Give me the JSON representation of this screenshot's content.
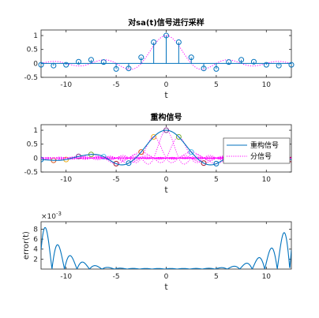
{
  "chart_data": [
    {
      "type": "stem",
      "title": "对sa(t)信号进行采样",
      "xlabel": "t",
      "ylabel": "",
      "xlim": [
        -12.5,
        12.5
      ],
      "ylim": [
        -0.5,
        1.2
      ],
      "xticks": [
        -10,
        -5,
        0,
        5,
        10
      ],
      "xtick_labels": [
        "-10",
        "-5",
        "0",
        "5",
        "10"
      ],
      "yticks": [
        -0.5,
        0,
        0.5,
        1
      ],
      "ytick_labels": [
        "-0.5",
        "0",
        "0.5",
        "1"
      ],
      "samples": {
        "x": [
          -12.5,
          -11.25,
          -10,
          -8.75,
          -7.5,
          -6.25,
          -5,
          -3.75,
          -2.5,
          -1.25,
          0,
          1.25,
          2.5,
          3.75,
          5,
          6.25,
          7.5,
          8.75,
          10,
          11.25,
          12.5
        ],
        "y": [
          -0.05,
          -0.08,
          -0.05,
          0.06,
          0.13,
          0.05,
          -0.2,
          -0.18,
          0.22,
          0.76,
          1.0,
          0.76,
          0.22,
          -0.18,
          -0.2,
          0.05,
          0.13,
          0.06,
          -0.05,
          -0.08,
          -0.05
        ]
      },
      "series": [
        {
          "style": "stem",
          "color": "#0072BD"
        },
        {
          "style": "dotted",
          "color": "#FF00FF"
        }
      ]
    },
    {
      "type": "line",
      "title": "重构信号",
      "xlabel": "t",
      "ylabel": "",
      "xlim": [
        -12.5,
        12.5
      ],
      "ylim": [
        -0.5,
        1.2
      ],
      "xticks": [
        -10,
        -5,
        0,
        5,
        10
      ],
      "xtick_labels": [
        "-10",
        "-5",
        "0",
        "5",
        "10"
      ],
      "yticks": [
        -0.5,
        0,
        0.5,
        1
      ],
      "ytick_labels": [
        "-0.5",
        "0",
        "0.5",
        "1"
      ],
      "legend_position": "upper-right",
      "series": [
        {
          "name": "重构信号",
          "style": "solid",
          "color": "#0072BD"
        },
        {
          "name": "分信号",
          "style": "dotted",
          "color": "#FF00FF"
        }
      ]
    },
    {
      "type": "line",
      "title": "",
      "xlabel": "t",
      "ylabel": "error(t)",
      "exponent_label": "×10",
      "exponent_power": "-3",
      "xlim": [
        -12.5,
        12.5
      ],
      "ylim": [
        0,
        9.5
      ],
      "xticks": [
        -10,
        -5,
        0,
        5,
        10
      ],
      "xtick_labels": [
        "-10",
        "-5",
        "0",
        "5",
        "10"
      ],
      "yticks": [
        2,
        4,
        6,
        8
      ],
      "ytick_labels": [
        "2",
        "4",
        "6",
        "8"
      ],
      "series": [
        {
          "style": "solid",
          "color": "#0072BD"
        }
      ]
    }
  ]
}
